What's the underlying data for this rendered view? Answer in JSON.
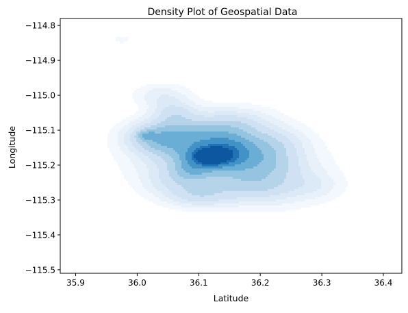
{
  "chart_data": {
    "type": "kde-density",
    "title": "Density Plot of Geospatial Data",
    "xlabel": "Latitude",
    "ylabel": "Longitude",
    "xlim": [
      35.875,
      36.43
    ],
    "ylim": [
      -115.51,
      -114.78
    ],
    "xticks": [
      35.9,
      36.0,
      36.1,
      36.2,
      36.3,
      36.4
    ],
    "xtick_labels": [
      "35.9",
      "36.0",
      "36.1",
      "36.2",
      "36.3",
      "36.4"
    ],
    "yticks": [
      -114.8,
      -114.9,
      -115.0,
      -115.1,
      -115.2,
      -115.3,
      -115.4,
      -115.5
    ],
    "ytick_labels": [
      "−114.8",
      "−114.9",
      "−115.0",
      "−115.1",
      "−115.2",
      "−115.3",
      "−115.4",
      "−115.5"
    ],
    "grid": false,
    "legend": "none",
    "colormap": [
      "#f3f8fe",
      "#e8f1fa",
      "#dce9f6",
      "#cfe1f2",
      "#b5d4e9",
      "#94c4df",
      "#6aaed6",
      "#4292c6",
      "#2171b5",
      "#0d57a1"
    ],
    "density_peak": [
      36.12,
      -115.175
    ],
    "kernels": [
      {
        "x": 36.13,
        "y": -115.17,
        "sx": 0.07,
        "sy": 0.055,
        "w": 0.45
      },
      {
        "x": 36.12,
        "y": -115.175,
        "sx": 0.02,
        "sy": 0.016,
        "w": 1.0
      },
      {
        "x": 36.145,
        "y": -115.16,
        "sx": 0.026,
        "sy": 0.03,
        "w": 0.3
      },
      {
        "x": 36.035,
        "y": -115.12,
        "sx": 0.035,
        "sy": 0.03,
        "w": 0.32
      },
      {
        "x": 36.015,
        "y": -115.115,
        "sx": 0.01,
        "sy": 0.008,
        "w": 0.2
      },
      {
        "x": 36.06,
        "y": -115.05,
        "sx": 0.025,
        "sy": 0.025,
        "w": 0.18
      },
      {
        "x": 36.04,
        "y": -115.0,
        "sx": 0.03,
        "sy": 0.022,
        "w": 0.1
      },
      {
        "x": 36.155,
        "y": -115.08,
        "sx": 0.04,
        "sy": 0.03,
        "w": 0.14
      },
      {
        "x": 36.205,
        "y": -115.19,
        "sx": 0.04,
        "sy": 0.055,
        "w": 0.16
      },
      {
        "x": 36.18,
        "y": -115.27,
        "sx": 0.05,
        "sy": 0.03,
        "w": 0.14
      },
      {
        "x": 36.06,
        "y": -115.25,
        "sx": 0.035,
        "sy": 0.03,
        "w": 0.12
      },
      {
        "x": 36.1,
        "y": -115.29,
        "sx": 0.035,
        "sy": 0.022,
        "w": 0.16
      },
      {
        "x": 36.095,
        "y": -115.12,
        "sx": 0.04,
        "sy": 0.035,
        "w": 0.16
      },
      {
        "x": 36.25,
        "y": -115.24,
        "sx": 0.05,
        "sy": 0.05,
        "w": 0.08
      },
      {
        "x": 36.29,
        "y": -115.26,
        "sx": 0.03,
        "sy": 0.025,
        "w": 0.06
      },
      {
        "x": 36.235,
        "y": -115.13,
        "sx": 0.03,
        "sy": 0.025,
        "w": 0.05
      },
      {
        "x": 35.975,
        "y": -114.84,
        "sx": 0.01,
        "sy": 0.007,
        "w": 0.06
      },
      {
        "x": 36.09,
        "y": -115.21,
        "sx": 0.02,
        "sy": 0.022,
        "w": 0.2
      }
    ]
  }
}
